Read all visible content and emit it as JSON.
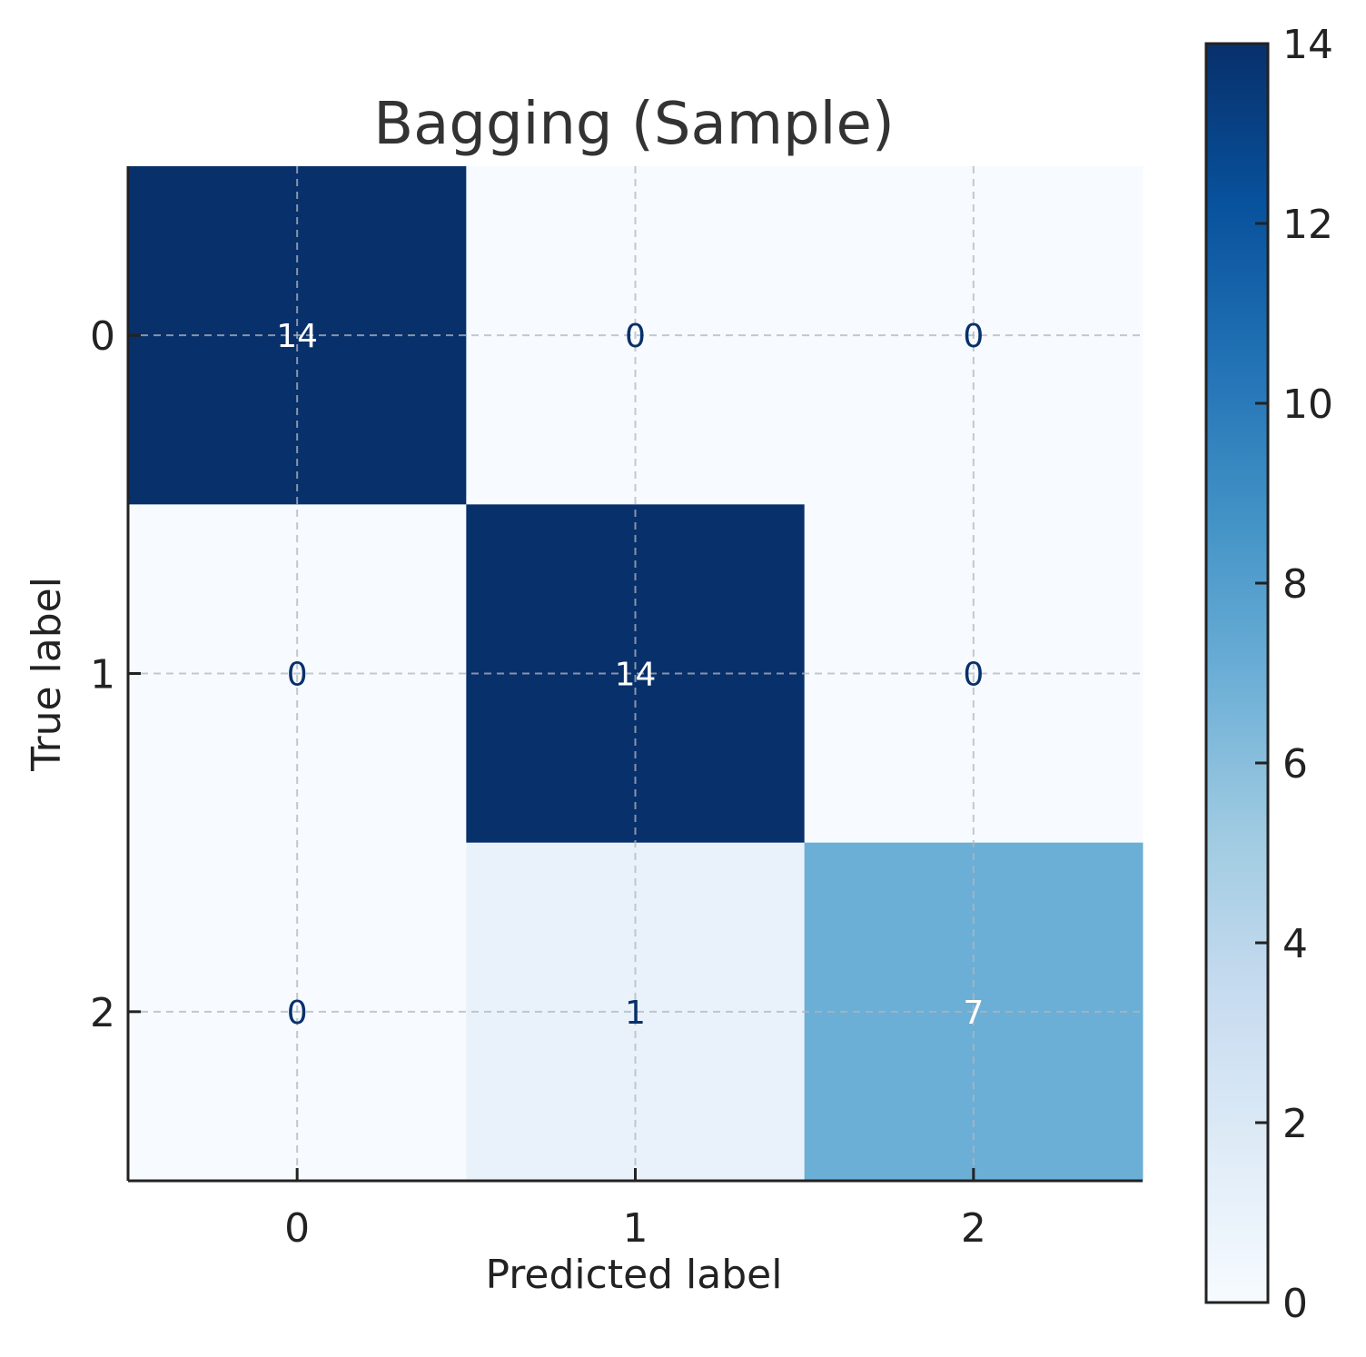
{
  "chart_data": {
    "type": "heatmap",
    "title": "Bagging (Sample)",
    "xlabel": "Predicted label",
    "ylabel": "True label",
    "x_categories": [
      "0",
      "1",
      "2"
    ],
    "y_categories": [
      "0",
      "1",
      "2"
    ],
    "matrix": [
      [
        14,
        0,
        0
      ],
      [
        0,
        14,
        0
      ],
      [
        0,
        1,
        7
      ]
    ],
    "colorscale": "Blues",
    "colorbar": {
      "min": 0,
      "max": 14,
      "ticks": [
        0,
        2,
        4,
        6,
        8,
        10,
        12,
        14
      ]
    },
    "grid": true,
    "colors": {
      "low": "#f7fbff",
      "high": "#08306b",
      "text_dark": "#08306b",
      "text_light": "#ffffff"
    }
  }
}
